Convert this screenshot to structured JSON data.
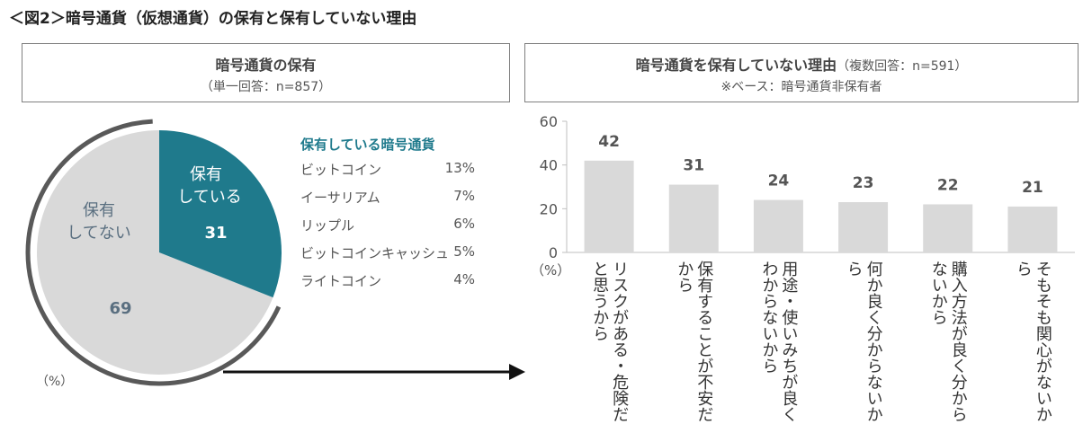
{
  "figure_title": "＜図2＞暗号通貨（仮想通貨）の保有と保有していない理由",
  "left_panel": {
    "title": "暗号通貨の保有",
    "subtitle": "（単一回答：n=857）",
    "unit": "（%）"
  },
  "right_panel": {
    "title": "暗号通貨を保有していない理由",
    "title_note": "（複数回答：n=591）",
    "subtitle": "※ベース：暗号通貨非保有者",
    "unit": "（%）"
  },
  "held_types": {
    "title": "保有している暗号通貨",
    "items": [
      {
        "name": "ビットコイン",
        "pct": "13%"
      },
      {
        "name": "イーサリアム",
        "pct": "7%"
      },
      {
        "name": "リップル",
        "pct": "6%"
      },
      {
        "name": "ビットコインキャッシュ",
        "pct": "5%"
      },
      {
        "name": "ライトコイン",
        "pct": "4%"
      }
    ]
  },
  "colors": {
    "held": "#1f7a8c",
    "not_held": "#d9d9d9",
    "bar": "#d9d9d9",
    "axis": "#bfbfbf",
    "arc": "#595959"
  },
  "chart_data": [
    {
      "type": "pie",
      "slices": [
        {
          "label": "保有している",
          "value": 31
        },
        {
          "label": "保有してない",
          "value": 69
        }
      ]
    },
    {
      "type": "bar",
      "categories": [
        "リスクがある・危険だと思うから",
        "保有することが不安だから",
        "用途・使いみちが良くわからないから",
        "何か良く分からないから",
        "購入方法が良く分からないから",
        "そもそも関心がないから"
      ],
      "values": [
        42,
        31,
        24,
        23,
        22,
        21
      ],
      "ylim": [
        0,
        60
      ],
      "yticks": [
        0,
        20,
        40,
        60
      ],
      "grid": false
    }
  ]
}
